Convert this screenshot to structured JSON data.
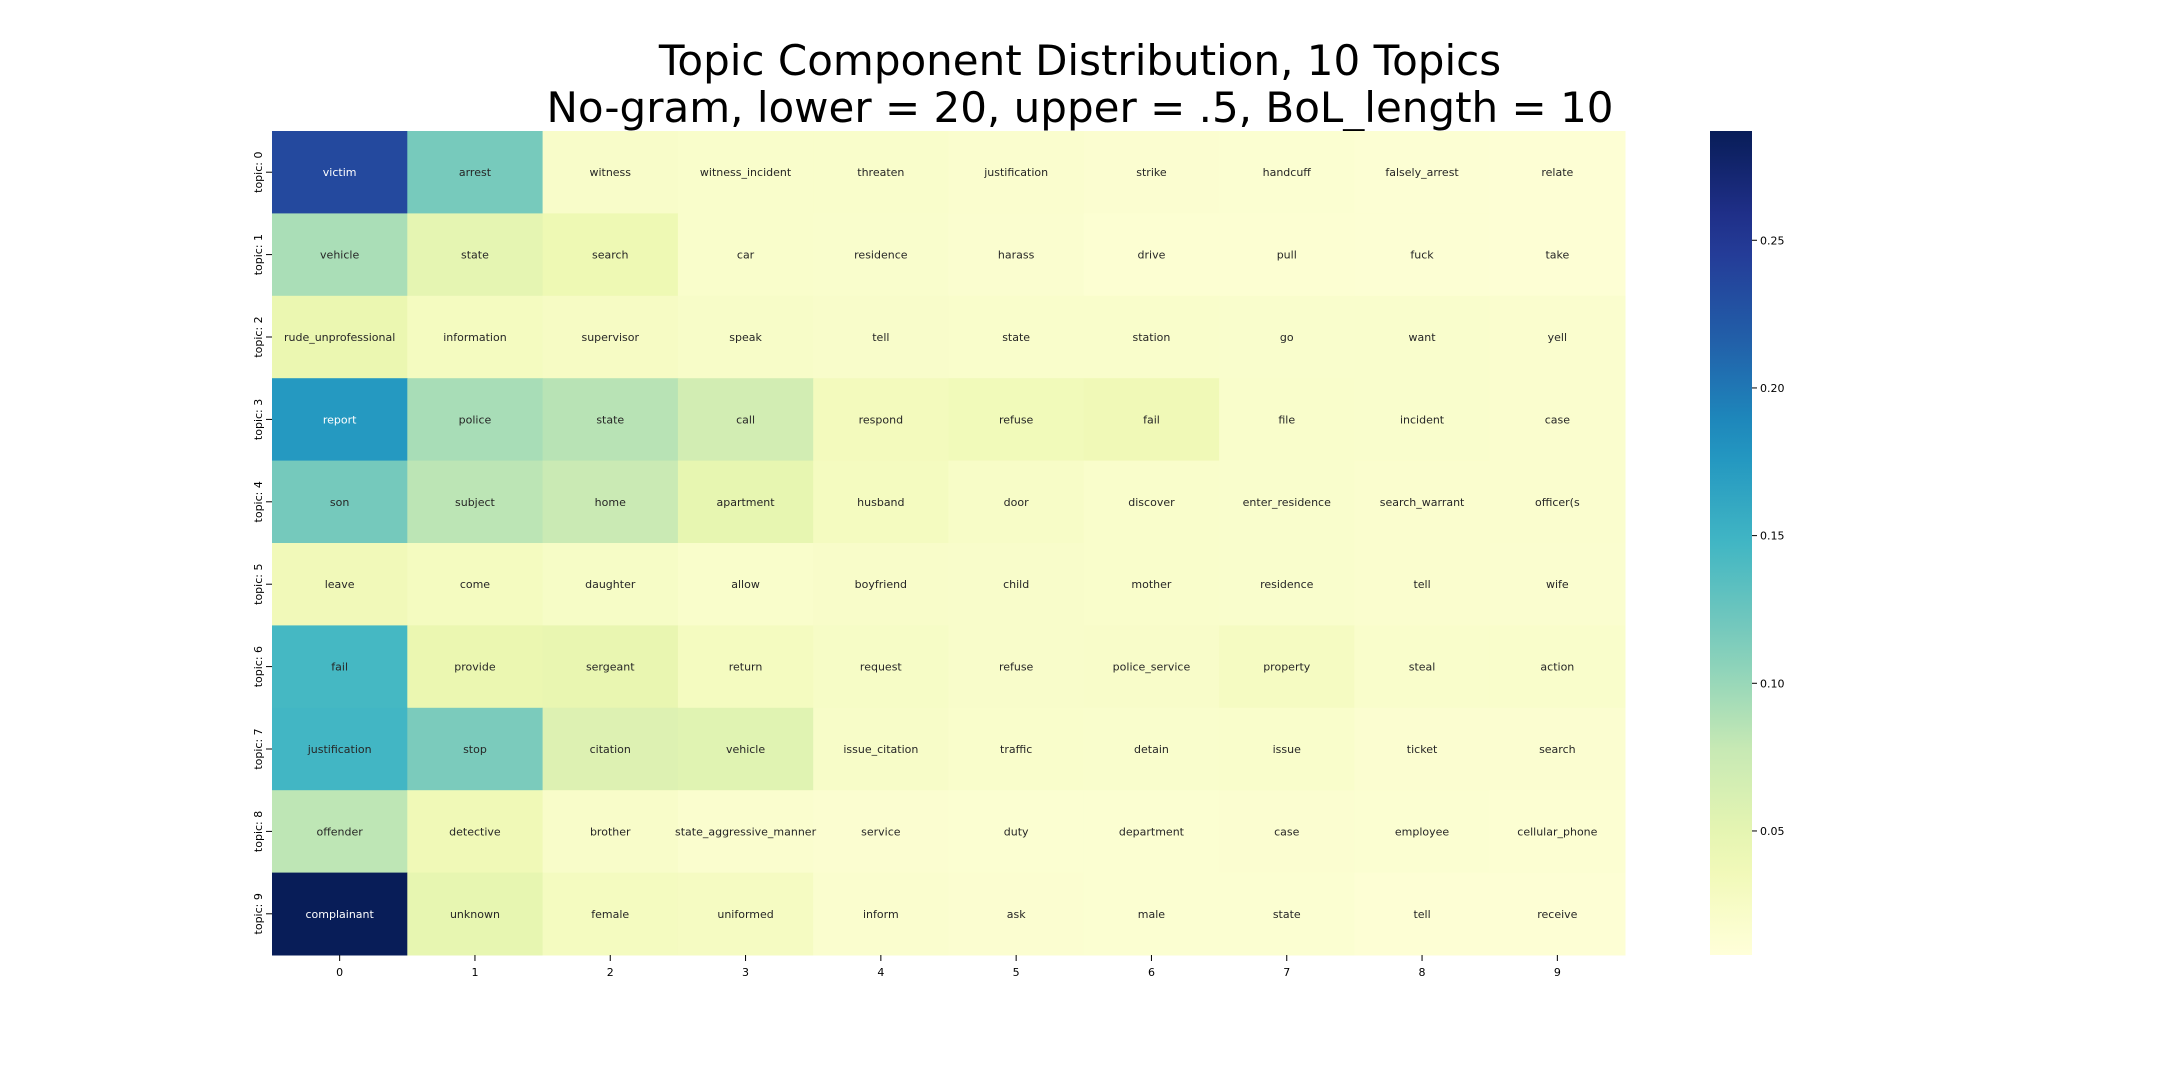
{
  "chart_data": {
    "type": "heatmap",
    "title": "Topic Component Distribution, 10 Topics",
    "subtitle": "No-gram, lower = 20, upper = .5, BoL_length = 10",
    "x_ticks": [
      "0",
      "1",
      "2",
      "3",
      "4",
      "5",
      "6",
      "7",
      "8",
      "9"
    ],
    "y_ticks": [
      "topic: 0",
      "topic: 1",
      "topic: 2",
      "topic: 3",
      "topic: 4",
      "topic: 5",
      "topic: 6",
      "topic: 7",
      "topic: 8",
      "topic: 9"
    ],
    "colormap": "YlGnBu",
    "colorbar": {
      "min": 0.008,
      "max": 0.287,
      "ticks": [
        0.05,
        0.1,
        0.15,
        0.2,
        0.25
      ]
    },
    "words": [
      [
        "victim",
        "arrest",
        "witness",
        "witness_incident",
        "threaten",
        "justification",
        "strike",
        "handcuff",
        "falsely_arrest",
        "relate"
      ],
      [
        "vehicle",
        "state",
        "search",
        "car",
        "residence",
        "harass",
        "drive",
        "pull",
        "fuck",
        "take"
      ],
      [
        "rude_unprofessional",
        "information",
        "supervisor",
        "speak",
        "tell",
        "state",
        "station",
        "go",
        "want",
        "yell"
      ],
      [
        "report",
        "police",
        "state",
        "call",
        "respond",
        "refuse",
        "fail",
        "file",
        "incident",
        "case"
      ],
      [
        "son",
        "subject",
        "home",
        "apartment",
        "husband",
        "door",
        "discover",
        "enter_residence",
        "search_warrant",
        "officer(s"
      ],
      [
        "leave",
        "come",
        "daughter",
        "allow",
        "boyfriend",
        "child",
        "mother",
        "residence",
        "tell",
        "wife"
      ],
      [
        "fail",
        "provide",
        "sergeant",
        "return",
        "request",
        "refuse",
        "police_service",
        "property",
        "steal",
        "action"
      ],
      [
        "justification",
        "stop",
        "citation",
        "vehicle",
        "issue_citation",
        "traffic",
        "detain",
        "issue",
        "ticket",
        "search"
      ],
      [
        "offender",
        "detective",
        "brother",
        "state_aggressive_manner",
        "service",
        "duty",
        "department",
        "case",
        "employee",
        "cellular_phone"
      ],
      [
        "complainant",
        "unknown",
        "female",
        "uniformed",
        "inform",
        "ask",
        "male",
        "state",
        "tell",
        "receive"
      ]
    ],
    "values": [
      [
        0.235,
        0.117,
        0.022,
        0.02,
        0.02,
        0.018,
        0.016,
        0.015,
        0.013,
        0.012
      ],
      [
        0.092,
        0.05,
        0.04,
        0.02,
        0.019,
        0.017,
        0.014,
        0.014,
        0.013,
        0.012
      ],
      [
        0.045,
        0.03,
        0.026,
        0.023,
        0.021,
        0.02,
        0.02,
        0.019,
        0.019,
        0.018
      ],
      [
        0.175,
        0.093,
        0.085,
        0.068,
        0.032,
        0.035,
        0.038,
        0.02,
        0.019,
        0.018
      ],
      [
        0.118,
        0.083,
        0.075,
        0.048,
        0.03,
        0.024,
        0.02,
        0.019,
        0.018,
        0.018
      ],
      [
        0.036,
        0.03,
        0.025,
        0.02,
        0.022,
        0.021,
        0.02,
        0.019,
        0.018,
        0.017
      ],
      [
        0.145,
        0.045,
        0.047,
        0.03,
        0.025,
        0.021,
        0.022,
        0.028,
        0.02,
        0.02
      ],
      [
        0.147,
        0.115,
        0.058,
        0.055,
        0.023,
        0.02,
        0.019,
        0.02,
        0.016,
        0.016
      ],
      [
        0.082,
        0.038,
        0.022,
        0.018,
        0.016,
        0.015,
        0.015,
        0.016,
        0.015,
        0.014
      ],
      [
        0.287,
        0.048,
        0.03,
        0.028,
        0.018,
        0.016,
        0.015,
        0.015,
        0.012,
        0.012
      ]
    ]
  }
}
